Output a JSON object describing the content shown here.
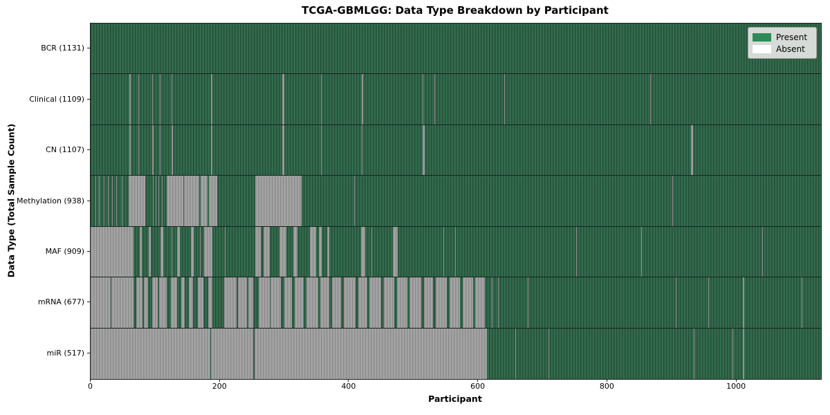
{
  "title": "TCGA-GBMLGG: Data Type Breakdown by Participant",
  "xlabel": "Participant",
  "ylabel": "Data Type (Total Sample Count)",
  "legend": {
    "present_label": "Present",
    "absent_label": "Absent",
    "present_color": "#2e8b57",
    "absent_color": "#ffffff"
  },
  "colors": {
    "present_fill": "#2e8b57",
    "present_render_dark": "#25503a",
    "present_render_light": "#336b4d",
    "absent_render_dark": "#8d8d8d",
    "absent_render_light": "#a4a4a4",
    "legend_bg": "#d7dbd7",
    "spine": "#1f1f1f"
  },
  "chart_data": {
    "type": "heatmap",
    "title": "TCGA-GBMLGG: Data Type Breakdown by Participant",
    "xlabel": "Participant",
    "ylabel": "Data Type (Total Sample Count)",
    "legend_entries": [
      "Present",
      "Absent"
    ],
    "legend_position": "upper right",
    "grid": false,
    "n_participants": 1131,
    "x_ticks": [
      0,
      200,
      400,
      600,
      800,
      1000
    ],
    "x_range": [
      -0.5,
      1130.5
    ],
    "rows": [
      {
        "label": "BCR (1131)",
        "name": "BCR",
        "total": 1131,
        "absent_segments": []
      },
      {
        "label": "Clinical (1109)",
        "name": "Clinical",
        "total": 1109,
        "absent_segments": [
          [
            60,
            62
          ],
          [
            74,
            75
          ],
          [
            95,
            96
          ],
          [
            107,
            108
          ],
          [
            125,
            126
          ],
          [
            186,
            189
          ],
          [
            297,
            300
          ],
          [
            357,
            358
          ],
          [
            420,
            422
          ],
          [
            514,
            515
          ],
          [
            532,
            533
          ],
          [
            640,
            641
          ],
          [
            866,
            868
          ]
        ]
      },
      {
        "label": "CN (1107)",
        "name": "CN",
        "total": 1107,
        "absent_segments": [
          [
            60,
            62
          ],
          [
            74,
            75
          ],
          [
            95,
            97
          ],
          [
            107,
            108
          ],
          [
            125,
            127
          ],
          [
            186,
            189
          ],
          [
            297,
            300
          ],
          [
            357,
            358
          ],
          [
            420,
            421
          ],
          [
            514,
            517
          ],
          [
            930,
            933
          ]
        ]
      },
      {
        "label": "Methylation (938)",
        "name": "Methylation",
        "total": 938,
        "absent_segments": [
          [
            7,
            9
          ],
          [
            13,
            14
          ],
          [
            20,
            21
          ],
          [
            27,
            28
          ],
          [
            33,
            34
          ],
          [
            40,
            41
          ],
          [
            48,
            49
          ],
          [
            59,
            85
          ],
          [
            96,
            97
          ],
          [
            101,
            102
          ],
          [
            105,
            106
          ],
          [
            110,
            111
          ],
          [
            118,
            143
          ],
          [
            145,
            168
          ],
          [
            170,
            181
          ],
          [
            183,
            196
          ],
          [
            255,
            327
          ],
          [
            408,
            409
          ],
          [
            901,
            902
          ]
        ]
      },
      {
        "label": "MAF (909)",
        "name": "MAF",
        "total": 909,
        "absent_segments": [
          [
            0,
            66
          ],
          [
            76,
            79
          ],
          [
            90,
            93
          ],
          [
            108,
            112
          ],
          [
            125,
            126
          ],
          [
            134,
            138
          ],
          [
            155,
            160
          ],
          [
            169,
            170
          ],
          [
            176,
            189
          ],
          [
            208,
            209
          ],
          [
            255,
            264
          ],
          [
            268,
            277
          ],
          [
            292,
            303
          ],
          [
            314,
            320
          ],
          [
            340,
            349
          ],
          [
            353,
            358
          ],
          [
            366,
            369
          ],
          [
            419,
            425
          ],
          [
            435,
            436
          ],
          [
            468,
            476
          ],
          [
            546,
            547
          ],
          [
            564,
            565
          ],
          [
            752,
            753
          ],
          [
            853,
            854
          ],
          [
            1040,
            1041
          ]
        ]
      },
      {
        "label": "mRNA (677)",
        "name": "mRNA",
        "total": 677,
        "absent_segments": [
          [
            0,
            31
          ],
          [
            32,
            66
          ],
          [
            71,
            80
          ],
          [
            82,
            89
          ],
          [
            95,
            104
          ],
          [
            106,
            118
          ],
          [
            124,
            134
          ],
          [
            140,
            146
          ],
          [
            152,
            158
          ],
          [
            166,
            175
          ],
          [
            182,
            188
          ],
          [
            207,
            226
          ],
          [
            228,
            242
          ],
          [
            244,
            252
          ],
          [
            260,
            277
          ],
          [
            279,
            295
          ],
          [
            300,
            312
          ],
          [
            316,
            330
          ],
          [
            334,
            352
          ],
          [
            356,
            370
          ],
          [
            374,
            388
          ],
          [
            392,
            410
          ],
          [
            414,
            428
          ],
          [
            432,
            450
          ],
          [
            454,
            470
          ],
          [
            474,
            490
          ],
          [
            494,
            512
          ],
          [
            516,
            530
          ],
          [
            534,
            552
          ],
          [
            556,
            572
          ],
          [
            576,
            592
          ],
          [
            596,
            610
          ],
          [
            621,
            622
          ],
          [
            631,
            632
          ],
          [
            677,
            678
          ],
          [
            906,
            907
          ],
          [
            956,
            957
          ],
          [
            1010,
            1012
          ],
          [
            1101,
            1102
          ]
        ]
      },
      {
        "label": "miR (517)",
        "name": "miR",
        "total": 517,
        "absent_segments": [
          [
            0,
            185
          ],
          [
            186,
            252
          ],
          [
            254,
            614
          ],
          [
            658,
            659
          ],
          [
            709,
            710
          ],
          [
            934,
            935
          ],
          [
            994,
            995
          ],
          [
            1010,
            1012
          ]
        ]
      }
    ]
  }
}
